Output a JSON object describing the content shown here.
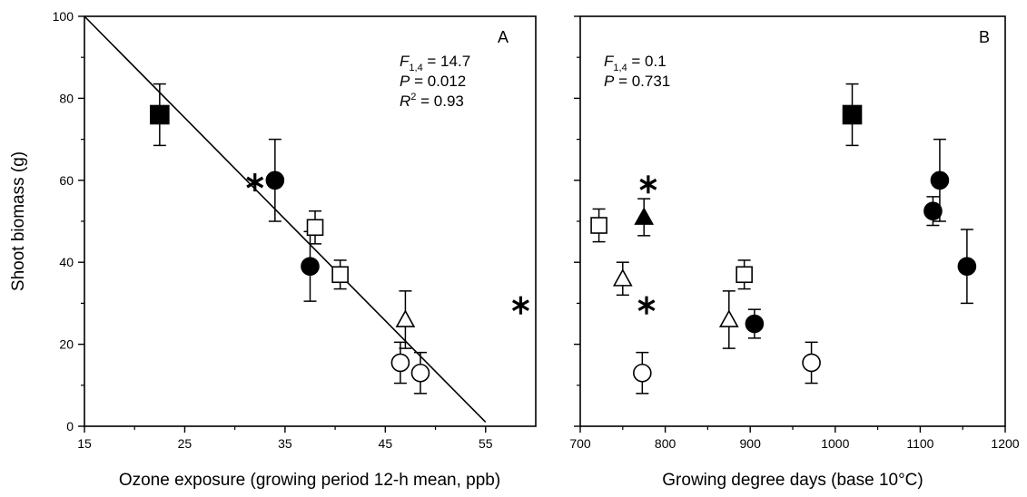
{
  "chart_data": [
    {
      "type": "scatter",
      "panel_label": "A",
      "xlabel": "Ozone exposure (growing period 12-h mean, ppb)",
      "ylabel": "Shoot biomass (g)",
      "xlim": [
        15,
        60
      ],
      "ylim": [
        0,
        100
      ],
      "xticks": [
        "15",
        "25",
        "35",
        "45",
        "55"
      ],
      "yticks": [
        "0",
        "20",
        "40",
        "60",
        "80",
        "100"
      ],
      "stats": [
        {
          "var": "F",
          "sub": "1,4",
          "sup": "",
          "value": " = 14.7"
        },
        {
          "var": "P",
          "sub": "",
          "sup": "",
          "value": " = 0.012"
        },
        {
          "var": "R",
          "sub": "",
          "sup": "2",
          "value": " = 0.93"
        }
      ],
      "regression_line": {
        "x": [
          15,
          55
        ],
        "y": [
          100,
          1
        ]
      },
      "points": [
        {
          "marker": "filled-square",
          "x": 22.5,
          "y": 76,
          "err": 7.5
        },
        {
          "marker": "asterisk",
          "x": 32,
          "y": 59.5
        },
        {
          "marker": "filled-circle",
          "x": 34,
          "y": 60,
          "err": 10
        },
        {
          "marker": "filled-circle",
          "x": 37.5,
          "y": 39,
          "err": 8.5
        },
        {
          "marker": "open-square",
          "x": 38,
          "y": 48.5,
          "err": 4
        },
        {
          "marker": "open-square",
          "x": 40.5,
          "y": 37,
          "err": 3.5
        },
        {
          "marker": "open-triangle",
          "x": 47,
          "y": 26,
          "err": 7
        },
        {
          "marker": "open-circle",
          "x": 46.5,
          "y": 15.5,
          "err": 5
        },
        {
          "marker": "open-circle",
          "x": 48.5,
          "y": 13,
          "err": 5
        },
        {
          "marker": "asterisk",
          "x": 58.5,
          "y": 29.5
        }
      ]
    },
    {
      "type": "scatter",
      "panel_label": "B",
      "xlabel": "Growing degree days (base 10°C)",
      "ylabel": "",
      "xlim": [
        700,
        1200
      ],
      "ylim": [
        0,
        100
      ],
      "xticks": [
        "700",
        "800",
        "900",
        "1000",
        "1100",
        "1200"
      ],
      "yticks": [
        "0",
        "20",
        "40",
        "60",
        "80",
        "100"
      ],
      "stats": [
        {
          "var": "F",
          "sub": "1,4",
          "sup": "",
          "value": " = 0.1"
        },
        {
          "var": "P",
          "sub": "",
          "sup": "",
          "value": " = 0.731"
        }
      ],
      "points": [
        {
          "marker": "open-square",
          "x": 722,
          "y": 49,
          "err": 4
        },
        {
          "marker": "open-triangle",
          "x": 750,
          "y": 36,
          "err": 4
        },
        {
          "marker": "filled-triangle",
          "x": 775,
          "y": 51,
          "err": 4.5
        },
        {
          "marker": "asterisk",
          "x": 780,
          "y": 59
        },
        {
          "marker": "asterisk",
          "x": 778,
          "y": 29.5
        },
        {
          "marker": "open-circle",
          "x": 773,
          "y": 13,
          "err": 5
        },
        {
          "marker": "open-triangle",
          "x": 875,
          "y": 26,
          "err": 7
        },
        {
          "marker": "open-square",
          "x": 893,
          "y": 37,
          "err": 3.5
        },
        {
          "marker": "filled-circle",
          "x": 905,
          "y": 25,
          "err": 3.5
        },
        {
          "marker": "open-circle",
          "x": 972,
          "y": 15.5,
          "err": 5
        },
        {
          "marker": "filled-square",
          "x": 1020,
          "y": 76,
          "err": 7.5
        },
        {
          "marker": "filled-circle",
          "x": 1115,
          "y": 52.5,
          "err": 3.5
        },
        {
          "marker": "filled-circle",
          "x": 1123,
          "y": 60,
          "err": 10
        },
        {
          "marker": "filled-circle",
          "x": 1155,
          "y": 39,
          "err": 9
        }
      ]
    }
  ]
}
